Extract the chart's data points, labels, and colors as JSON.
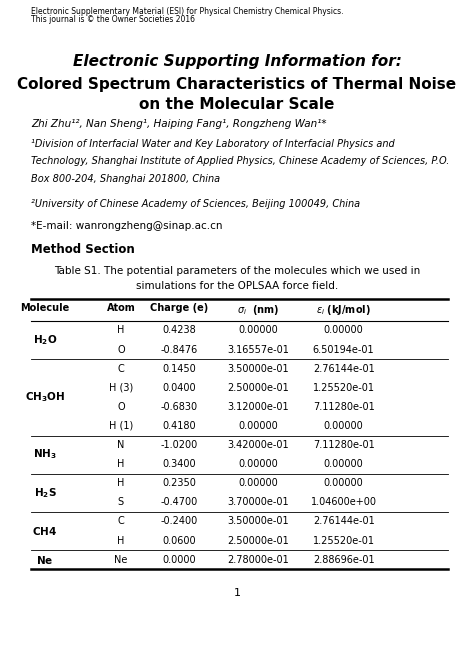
{
  "header_line1": "Electronic Supplementary Material (ESI) for Physical Chemistry Chemical Physics.",
  "header_line2": "This journal is © the Owner Societies 2016",
  "title_italic_bold": "Electronic Supporting Information for:",
  "subtitle1": "Colored Spectrum Characteristics of Thermal Noise",
  "subtitle2": "on the Molecular Scale",
  "authors": "Zhi Zhu¹², Nan Sheng¹, Haiping Fang¹, Rongzheng Wan¹*",
  "affil1a": "¹Division of Interfacial Water and Key Laboratory of Interfacial Physics and",
  "affil1b": "Technology, Shanghai Institute of Applied Physics, Chinese Academy of Sciences, P.O.",
  "affil1c": "Box 800-204, Shanghai 201800, China",
  "affil2": "²University of Chinese Academy of Sciences, Beijing 100049, China",
  "email": "*E-mail: wanrongzheng@sinap.ac.cn",
  "method_section": "Method Section",
  "table_caption1": "Table S1. The potential parameters of the molecules which we used in",
  "table_caption2": "simulations for the OPLSAA force field.",
  "col_headers": [
    "Molecule",
    "Atom",
    "Charge (e)",
    "sigma_i (nm)",
    "epsilon_i (kJ/mol)"
  ],
  "table_data": [
    [
      "H2O",
      "H",
      "0.4238",
      "0.00000",
      "0.00000"
    ],
    [
      "H2O",
      "O",
      "-0.8476",
      "3.16557e-01",
      "6.50194e-01"
    ],
    [
      "CH3OH",
      "C",
      "0.1450",
      "3.50000e-01",
      "2.76144e-01"
    ],
    [
      "CH3OH",
      "H (3)",
      "0.0400",
      "2.50000e-01",
      "1.25520e-01"
    ],
    [
      "CH3OH",
      "O",
      "-0.6830",
      "3.12000e-01",
      "7.11280e-01"
    ],
    [
      "CH3OH",
      "H (1)",
      "0.4180",
      "0.00000",
      "0.00000"
    ],
    [
      "NH3",
      "N",
      "-1.0200",
      "3.42000e-01",
      "7.11280e-01"
    ],
    [
      "NH3",
      "H",
      "0.3400",
      "0.00000",
      "0.00000"
    ],
    [
      "H2S",
      "H",
      "0.2350",
      "0.00000",
      "0.00000"
    ],
    [
      "H2S",
      "S",
      "-0.4700",
      "3.70000e-01",
      "1.04600e+00"
    ],
    [
      "CH4",
      "C",
      "-0.2400",
      "3.50000e-01",
      "2.76144e-01"
    ],
    [
      "CH4",
      "H",
      "0.0600",
      "2.50000e-01",
      "1.25520e-01"
    ],
    [
      "Ne",
      "Ne",
      "0.0000",
      "2.78000e-01",
      "2.88696e-01"
    ]
  ],
  "molecules_order": [
    "H2O",
    "CH3OH",
    "NH3",
    "H2S",
    "CH4",
    "Ne"
  ],
  "mol_latex": {
    "H2O": "$\\mathbf{H_2O}$",
    "CH3OH": "$\\mathbf{CH_3OH}$",
    "NH3": "$\\mathbf{NH_3}$",
    "H2S": "$\\mathbf{H_2S}$",
    "CH4": "$\\mathbf{CH4}$",
    "Ne": "$\\mathbf{Ne}$"
  },
  "mol_row_counts": {
    "H2O": 2,
    "CH3OH": 4,
    "NH3": 2,
    "H2S": 2,
    "CH4": 2,
    "Ne": 1
  },
  "page_number": "1",
  "fig_width": 4.74,
  "fig_height": 6.7,
  "dpi": 100
}
